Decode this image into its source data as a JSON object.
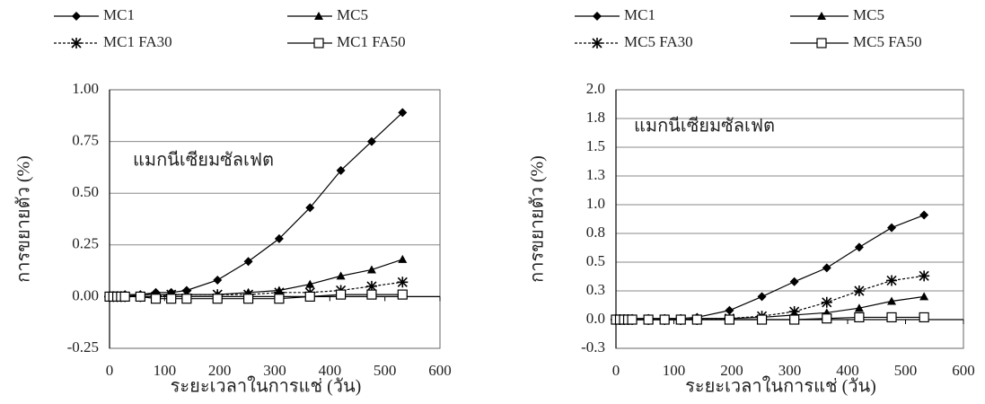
{
  "chart_data": [
    {
      "type": "line",
      "annotation": "แมกนีเซียมซัลเฟต",
      "x_label": "ระยะเวลาในการแช่ (วัน)",
      "y_label": "การขยายตัว (%)",
      "x": [
        0,
        7,
        14,
        21,
        28,
        56,
        84,
        112,
        140,
        196,
        252,
        308,
        364,
        420,
        476,
        532
      ],
      "series": [
        {
          "name": "MC1",
          "color": "#000000",
          "marker": "diamond",
          "dash": false,
          "values": [
            0,
            0,
            0,
            0,
            0.01,
            0.01,
            0.02,
            0.02,
            0.03,
            0.08,
            0.17,
            0.28,
            0.43,
            0.61,
            0.75,
            0.89
          ]
        },
        {
          "name": "MC5",
          "color": "#000000",
          "marker": "triangle",
          "dash": false,
          "values": [
            0,
            0,
            0,
            0,
            0,
            0.01,
            0.01,
            0.01,
            0.01,
            0.01,
            0.02,
            0.03,
            0.06,
            0.1,
            0.13,
            0.18
          ]
        },
        {
          "name": "MC1 FA30",
          "color": "#000000",
          "marker": "star",
          "dash": true,
          "values": [
            0,
            0,
            0,
            0,
            0,
            0,
            0,
            0.01,
            0.01,
            0.01,
            0.01,
            0.02,
            0.02,
            0.03,
            0.05,
            0.07
          ]
        },
        {
          "name": "MC1 FA50",
          "color": "#000000",
          "marker": "square",
          "dash": false,
          "values": [
            0,
            0,
            0,
            0,
            0,
            0,
            -0.01,
            -0.01,
            -0.01,
            -0.01,
            -0.01,
            -0.01,
            0,
            0.01,
            0.01,
            0.01
          ]
        }
      ],
      "xlim": [
        0,
        600
      ],
      "xticks": [
        0,
        100,
        200,
        300,
        400,
        500,
        600
      ],
      "ylim": [
        -0.25,
        1
      ],
      "yticks": [
        -0.25,
        {
          "value": 0,
          "label": "0.00"
        },
        0.25,
        {
          "value": 0.5,
          "label": "0.50"
        },
        0.75,
        {
          "value": 1,
          "label": "1.00"
        }
      ],
      "grid": true
    },
    {
      "type": "line",
      "annotation": "แมกนีเซียมซัลเฟต",
      "x_label": "ระยะเวลาในการแช่ (วัน)",
      "y_label": "การขยายตัว (%)",
      "x": [
        0,
        7,
        14,
        21,
        28,
        56,
        84,
        112,
        140,
        196,
        252,
        308,
        364,
        420,
        476,
        532
      ],
      "series": [
        {
          "name": "MC1",
          "color": "#000000",
          "marker": "diamond",
          "dash": false,
          "values": [
            0,
            0,
            0,
            0,
            0.01,
            0.01,
            0.01,
            0.01,
            0.02,
            0.08,
            0.2,
            0.33,
            0.45,
            0.63,
            0.8,
            0.91
          ]
        },
        {
          "name": "MC5",
          "color": "#000000",
          "marker": "triangle",
          "dash": false,
          "values": [
            0,
            0,
            0,
            0,
            0,
            0,
            0,
            0,
            0.01,
            0.01,
            0.02,
            0.04,
            0.06,
            0.1,
            0.16,
            0.2
          ]
        },
        {
          "name": "MC5 FA30",
          "color": "#000000",
          "marker": "star",
          "dash": true,
          "values": [
            0,
            0,
            0,
            0,
            0,
            0,
            0,
            0,
            0,
            0.01,
            0.03,
            0.07,
            0.15,
            0.25,
            0.34,
            0.38
          ]
        },
        {
          "name": "MC5 FA50",
          "color": "#000000",
          "marker": "square",
          "dash": false,
          "values": [
            0,
            0,
            0,
            0,
            0,
            0,
            0,
            0,
            0,
            0,
            0,
            0,
            0.01,
            0.02,
            0.02,
            0.02
          ]
        }
      ],
      "xlim": [
        0,
        600
      ],
      "xticks": [
        0,
        100,
        200,
        300,
        400,
        500,
        600
      ],
      "ylim": [
        -0.25,
        2
      ],
      "yticks": [
        {
          "value": -0.25,
          "label": "-0.3"
        },
        {
          "value": 0,
          "label": "0.0"
        },
        {
          "value": 0.25,
          "label": "0.3"
        },
        0.5,
        {
          "value": 0.75,
          "label": "0.8"
        },
        {
          "value": 1,
          "label": "1.0"
        },
        {
          "value": 1.25,
          "label": "1.3"
        },
        1.5,
        {
          "value": 1.75,
          "label": "1.8"
        },
        {
          "value": 2,
          "label": "2.0"
        }
      ],
      "grid": true
    }
  ]
}
